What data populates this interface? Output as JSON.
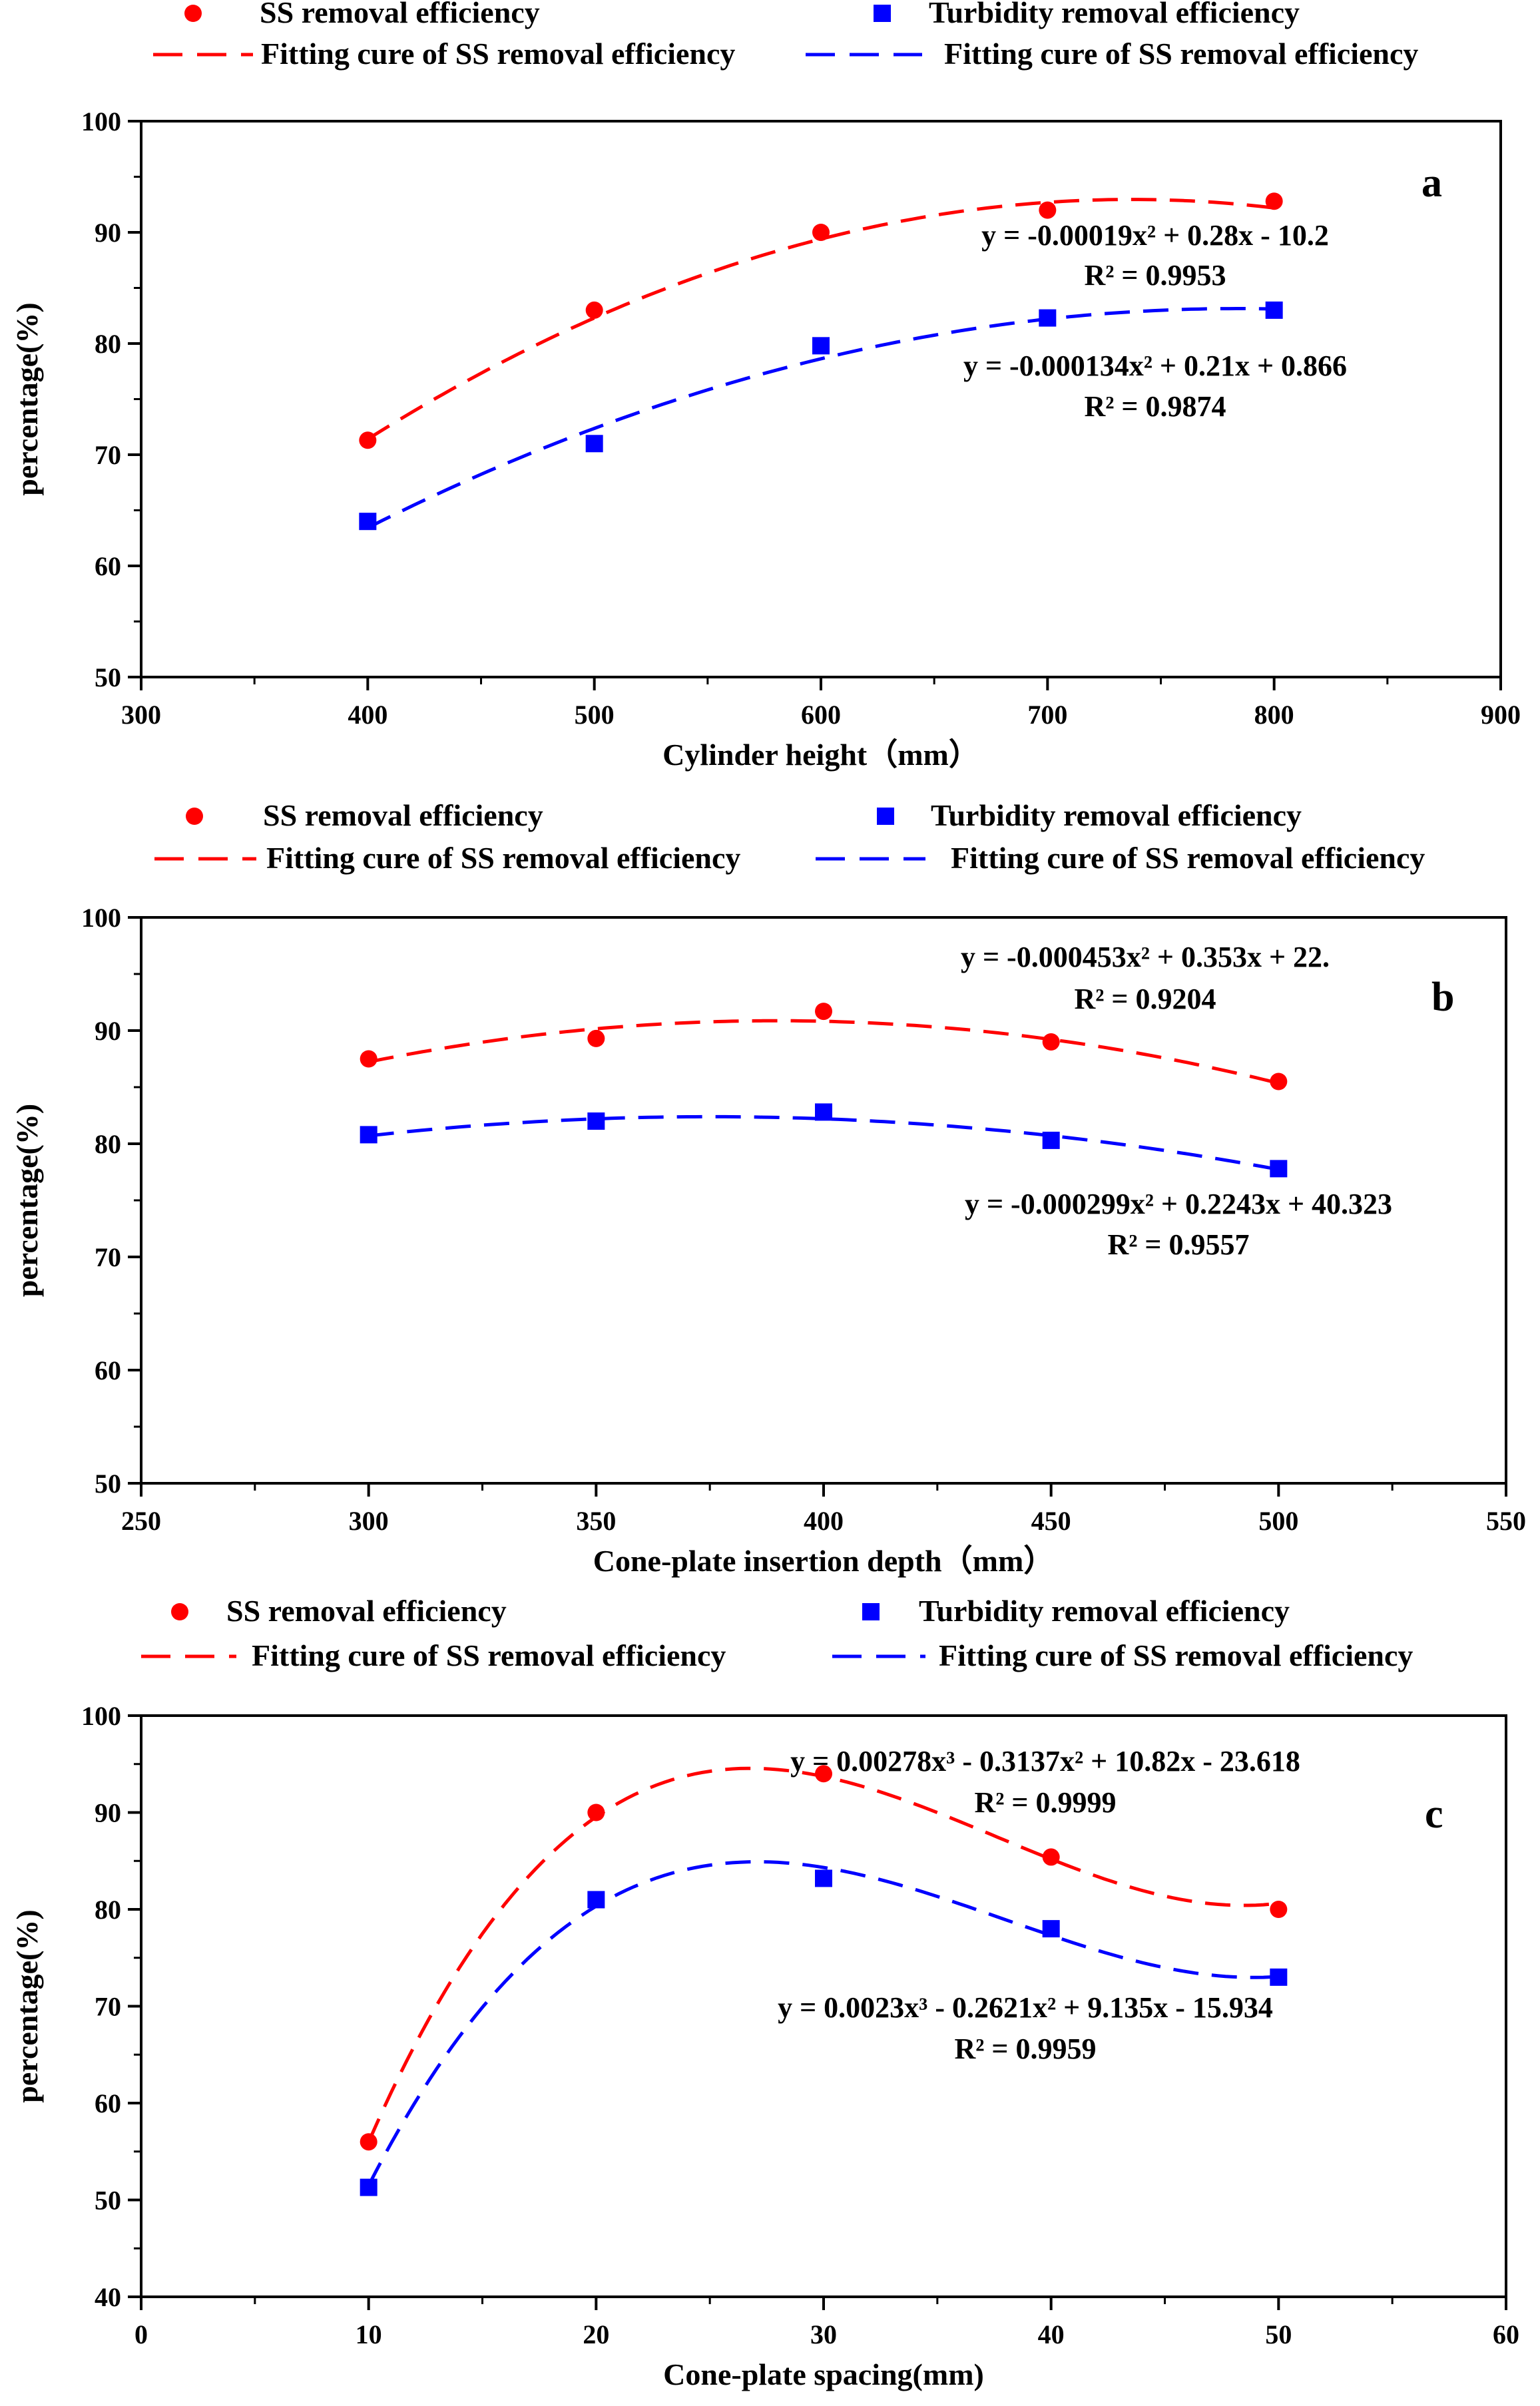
{
  "colors": {
    "ss": "#ff0000",
    "turbidity": "#0000ff",
    "axis": "#000000"
  },
  "chart_data": [
    {
      "panel_label": "a",
      "type": "scatter",
      "title": "",
      "xlabel": "Cylinder height（mm）",
      "ylabel": "percentage(%)",
      "xlim": [
        300,
        900
      ],
      "ylim": [
        50,
        100
      ],
      "xticks": [
        300,
        400,
        500,
        600,
        700,
        800,
        900
      ],
      "yticks": [
        50,
        60,
        70,
        80,
        90,
        100
      ],
      "legend": {
        "placement": "top",
        "ss_marker": "SS removal efficiency",
        "turbidity_marker": "Turbidity removal efficiency",
        "ss_fit": "Fitting cure of SS removal efficiency",
        "turbidity_fit": "Fitting cure of SS removal efficiency"
      },
      "series": [
        {
          "name": "SS removal efficiency",
          "color": "#ff0000",
          "marker": "circle",
          "x": [
            400,
            500,
            600,
            700,
            800
          ],
          "values": [
            71.3,
            83.0,
            90.0,
            92.0,
            92.8
          ],
          "fit": {
            "kind": "quadratic",
            "coef": [
              -0.00019,
              0.28,
              -10.2
            ],
            "domain": [
              400,
              800
            ]
          },
          "equation": "y = -0.00019x² + 0.28x - 10.2",
          "r2": "R² = 0.9953"
        },
        {
          "name": "Turbidity removal efficiency",
          "color": "#0000ff",
          "marker": "square",
          "x": [
            400,
            500,
            600,
            700,
            800
          ],
          "values": [
            64.0,
            71.0,
            79.8,
            82.3,
            83.0
          ],
          "fit": {
            "kind": "quadratic",
            "coef": [
              -0.000134,
              0.21,
              0.866
            ],
            "domain": [
              400,
              800
            ]
          },
          "equation": "y = -0.000134x² + 0.21x + 0.866",
          "r2": "R² = 0.9874"
        }
      ]
    },
    {
      "panel_label": "b",
      "type": "scatter",
      "title": "",
      "xlabel": "Cone-plate insertion depth（mm）",
      "ylabel": "percentage(%)",
      "xlim": [
        250,
        550
      ],
      "ylim": [
        50,
        100
      ],
      "xticks": [
        250,
        300,
        350,
        400,
        450,
        500,
        550
      ],
      "yticks": [
        50,
        60,
        70,
        80,
        90,
        100
      ],
      "legend": {
        "placement": "top",
        "ss_marker": "SS removal efficiency",
        "turbidity_marker": "Turbidity removal efficiency",
        "ss_fit": "Fitting cure of SS removal efficiency",
        "turbidity_fit": "Fitting cure of SS removal efficiency"
      },
      "series": [
        {
          "name": "SS removal efficiency",
          "color": "#ff0000",
          "marker": "circle",
          "x": [
            300,
            350,
            400,
            450,
            500
          ],
          "values": [
            87.5,
            89.3,
            91.7,
            89.0,
            85.5
          ],
          "fit": {
            "kind": "quadratic",
            "coef": [
              -0.000453,
              0.353,
              22.1
            ],
            "domain": [
              300,
              500
            ]
          },
          "equation": "y = -0.000453x² + 0.353x + 22.",
          "r2": "R² = 0.9204"
        },
        {
          "name": "Turbidity removal efficiency",
          "color": "#0000ff",
          "marker": "square",
          "x": [
            300,
            350,
            400,
            450,
            500
          ],
          "values": [
            80.8,
            82.0,
            82.8,
            80.3,
            77.8
          ],
          "fit": {
            "kind": "quadratic",
            "coef": [
              -0.000299,
              0.2243,
              40.323
            ],
            "domain": [
              300,
              500
            ]
          },
          "equation": "y = -0.000299x² + 0.2243x + 40.323",
          "r2": "R² = 0.9557"
        }
      ]
    },
    {
      "panel_label": "c",
      "type": "scatter",
      "title": "",
      "xlabel": "Cone-plate spacing(mm)",
      "ylabel": "percentage(%)",
      "xlim": [
        0,
        60
      ],
      "ylim": [
        40,
        100
      ],
      "xticks": [
        0,
        10,
        20,
        30,
        40,
        50,
        60
      ],
      "yticks": [
        40,
        50,
        60,
        70,
        80,
        90,
        100
      ],
      "legend": {
        "placement": "top",
        "ss_marker": "SS removal efficiency",
        "turbidity_marker": "Turbidity removal efficiency",
        "ss_fit": "Fitting cure of SS removal efficiency",
        "turbidity_fit": "Fitting cure of SS removal efficiency"
      },
      "series": [
        {
          "name": "SS removal efficiency",
          "color": "#ff0000",
          "marker": "circle",
          "x": [
            10,
            20,
            30,
            40,
            50
          ],
          "values": [
            56.0,
            90.0,
            94.0,
            85.4,
            80.0
          ],
          "fit": {
            "kind": "cubic",
            "coef": [
              0.00278,
              -0.3137,
              10.82,
              -23.618
            ],
            "domain": [
              10,
              50
            ]
          },
          "equation": "y = 0.00278x³ - 0.3137x² + 10.82x - 23.618",
          "r2": "R² = 0.9999"
        },
        {
          "name": "Turbidity removal efficiency",
          "color": "#0000ff",
          "marker": "square",
          "x": [
            10,
            20,
            30,
            40,
            50
          ],
          "values": [
            51.3,
            81.0,
            83.2,
            78.0,
            73.0
          ],
          "fit": {
            "kind": "cubic",
            "coef": [
              0.0023,
              -0.2621,
              9.135,
              -15.934
            ],
            "domain": [
              10,
              50
            ]
          },
          "equation": "y = 0.0023x³ - 0.2621x² + 9.135x - 15.934",
          "r2": "R² = 0.9959"
        }
      ]
    }
  ]
}
